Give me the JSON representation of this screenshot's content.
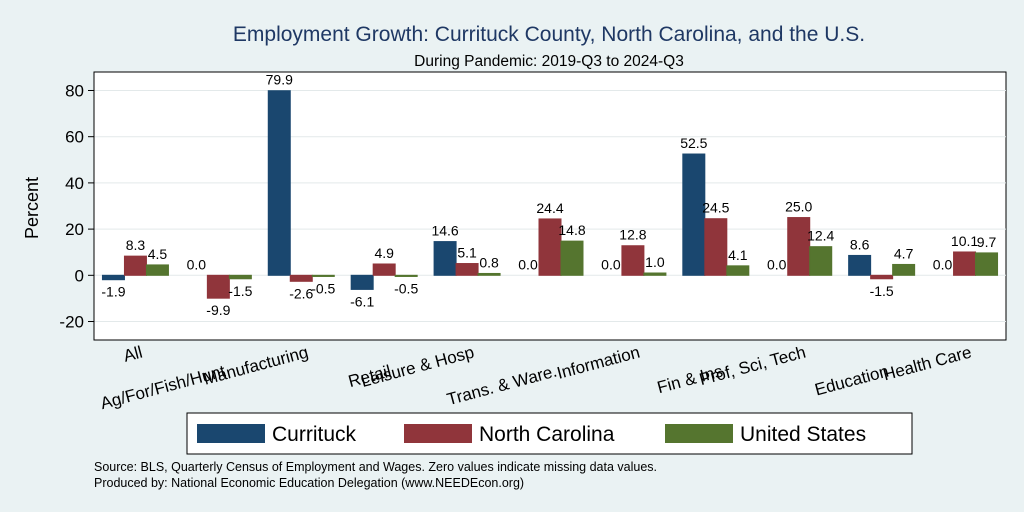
{
  "chart_data": {
    "type": "bar",
    "title": "Employment Growth: Currituck County, North Carolina, and the U.S.",
    "subtitle": "During Pandemic: 2019-Q3 to 2024-Q3",
    "ylabel": "Percent",
    "xlabel": "",
    "ylim": [
      -28,
      88
    ],
    "yticks": [
      80,
      60,
      40,
      20,
      0,
      -20
    ],
    "ytick_labels": [
      "80",
      "60",
      "40",
      "20",
      "0",
      "-20"
    ],
    "categories": [
      "All",
      "Ag/For/Fish/Hunt",
      "Manufacturing",
      "Retail",
      "Leisure & Hosp",
      "Trans. & Ware.",
      "Information",
      "Fin & Ins",
      "Prof, Sci, Tech",
      "Education",
      "Health Care"
    ],
    "series": [
      {
        "name": "Currituck",
        "color": "#1a476f",
        "values": [
          -1.9,
          0.0,
          79.9,
          -6.1,
          14.6,
          0.0,
          0.0,
          52.5,
          0.0,
          8.6,
          0.0
        ],
        "labels": [
          "-1.9",
          "0.0",
          "79.9",
          "-6.1",
          "14.6",
          "0.0",
          "0.0",
          "52.5",
          "0.0",
          "8.6",
          "0.0"
        ]
      },
      {
        "name": "North Carolina",
        "color": "#90353b",
        "values": [
          8.3,
          -9.9,
          -2.6,
          4.9,
          5.1,
          24.4,
          12.8,
          24.5,
          25.0,
          -1.5,
          10.1
        ],
        "labels": [
          "8.3",
          "-9.9",
          "-2.6",
          "4.9",
          "5.1",
          "24.4",
          "12.8",
          "24.5",
          "25.0",
          "-1.5",
          "10.1"
        ]
      },
      {
        "name": "United States",
        "color": "#55752f",
        "values": [
          4.5,
          -1.5,
          -0.5,
          -0.5,
          0.8,
          14.8,
          1.0,
          4.1,
          12.4,
          4.7,
          9.7
        ],
        "labels": [
          "4.5",
          "-1.5",
          "-0.5",
          "-0.5",
          "0.8",
          "14.8",
          "1.0",
          "4.1",
          "12.4",
          "4.7",
          "9.7"
        ]
      }
    ],
    "legend": [
      "Currituck",
      "North Carolina",
      "United States"
    ],
    "legend_position": "bottom",
    "grid": true
  },
  "notes": {
    "source": "Source: BLS, Quarterly Census of Employment and Wages. Zero values indicate missing data values.",
    "produced_by": "Produced by: National Economic Education Delegation (www.NEEDEcon.org)"
  }
}
